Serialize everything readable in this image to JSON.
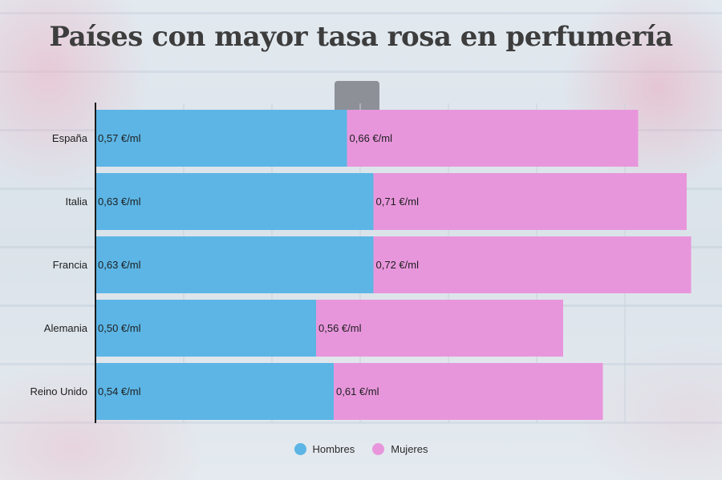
{
  "colors": {
    "hombres": "#5cb5e5",
    "mujeres": "#e896dc",
    "axis": "#1a1a1a",
    "grid": "#c9d2da",
    "text": "#1e1e1e"
  },
  "chart_data": {
    "type": "bar",
    "orientation": "horizontal",
    "stacked": true,
    "title": "Países con mayor tasa rosa en perfumería",
    "categories": [
      "España",
      "Italia",
      "Francia",
      "Alemania",
      "Reino Unido"
    ],
    "series": [
      {
        "name": "Hombres",
        "values": [
          0.57,
          0.63,
          0.63,
          0.5,
          0.54
        ],
        "labels": [
          "0,57 €/ml",
          "0,63 €/ml",
          "0,63 €/ml",
          "0,50 €/ml",
          "0,54 €/ml"
        ]
      },
      {
        "name": "Mujeres",
        "values": [
          0.66,
          0.71,
          0.72,
          0.56,
          0.61
        ],
        "labels": [
          "0,66 €/ml",
          "0,71 €/ml",
          "0,72 €/ml",
          "0,56 €/ml",
          "0,61 €/ml"
        ]
      }
    ],
    "xlim": [
      0,
      1.4
    ],
    "grid": true,
    "legend_position": "bottom"
  }
}
